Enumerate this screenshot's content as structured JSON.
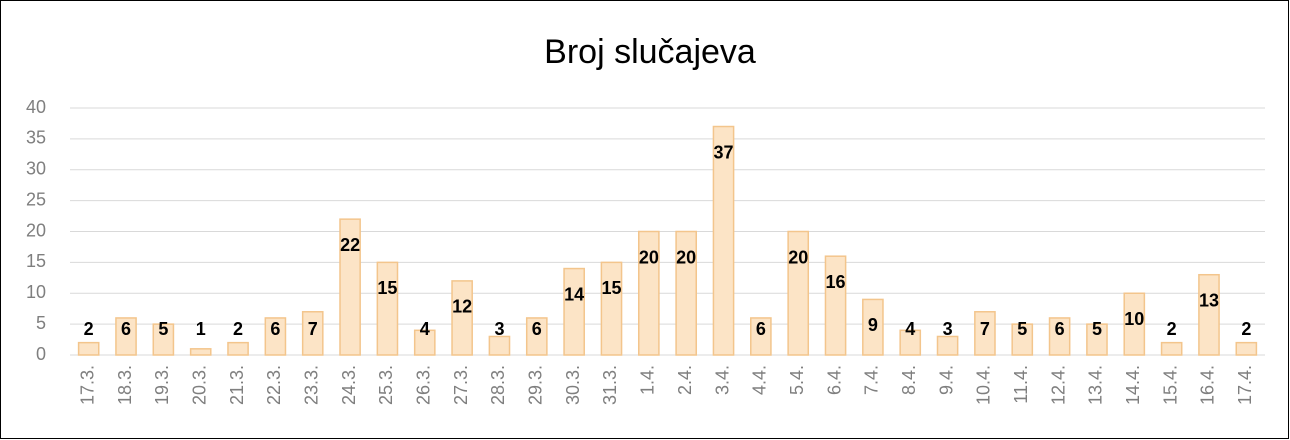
{
  "chart_data": {
    "type": "bar",
    "title": "Broj slučajeva",
    "categories": [
      "17.3.",
      "18.3.",
      "19.3.",
      "20.3.",
      "21.3.",
      "22.3.",
      "23.3.",
      "24.3.",
      "25.3.",
      "26.3.",
      "27.3.",
      "28.3.",
      "29.3.",
      "30.3.",
      "31.3.",
      "1.4.",
      "2.4.",
      "3.4.",
      "4.4.",
      "5.4.",
      "6.4.",
      "7.4.",
      "8.4.",
      "9.4.",
      "10.4.",
      "11.4.",
      "12.4.",
      "13.4.",
      "14.4.",
      "15.4.",
      "16.4.",
      "17.4."
    ],
    "values": [
      2,
      6,
      5,
      1,
      2,
      6,
      7,
      22,
      15,
      4,
      12,
      3,
      6,
      14,
      15,
      20,
      20,
      37,
      6,
      20,
      16,
      9,
      4,
      3,
      7,
      5,
      6,
      5,
      10,
      2,
      13,
      2
    ],
    "color": "#fce4c6",
    "edge_color": "#f3c58c",
    "ylim": [
      0,
      40
    ],
    "yticks": [
      0,
      5,
      10,
      15,
      20,
      25,
      30,
      35,
      40
    ],
    "grid": true
  }
}
